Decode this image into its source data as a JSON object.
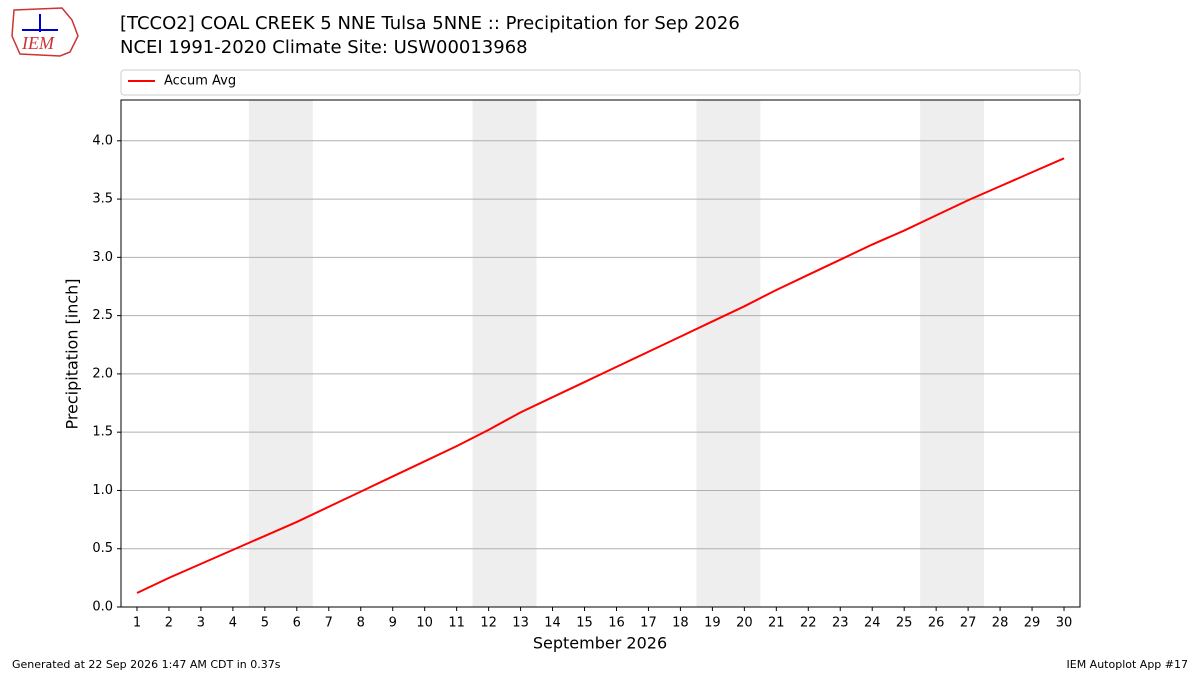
{
  "chart_data": {
    "type": "line",
    "title": "[TCCO2] COAL CREEK 5 NNE Tulsa 5NNE :: Precipitation for Sep 2026",
    "subtitle": "NCEI 1991-2020 Climate Site: USW00013968",
    "x_label": "September 2026",
    "y_label": "Precipitation [inch]",
    "logo_text": "IEM",
    "footer_left": "Generated at 22 Sep 2026 1:47 AM CDT in 0.37s",
    "footer_right": "IEM Autoplot App #17",
    "x": [
      1,
      2,
      3,
      4,
      5,
      6,
      7,
      8,
      9,
      10,
      11,
      12,
      13,
      14,
      15,
      16,
      17,
      18,
      19,
      20,
      21,
      22,
      23,
      24,
      25,
      26,
      27,
      28,
      29,
      30
    ],
    "series": [
      {
        "name": "Accum Avg",
        "color": "#ff0000",
        "values": [
          0.12,
          0.25,
          0.37,
          0.49,
          0.61,
          0.73,
          0.86,
          0.99,
          1.12,
          1.25,
          1.38,
          1.52,
          1.67,
          1.8,
          1.93,
          2.06,
          2.19,
          2.32,
          2.45,
          2.58,
          2.72,
          2.85,
          2.98,
          3.11,
          3.23,
          3.36,
          3.49,
          3.61,
          3.73,
          3.85
        ]
      }
    ],
    "shaded_spans": [
      [
        4.5,
        6.5
      ],
      [
        11.5,
        13.5
      ],
      [
        18.5,
        20.5
      ],
      [
        25.5,
        27.5
      ]
    ],
    "shade_color": "#eeeeee",
    "xlim": [
      0.5,
      30.5
    ],
    "ylim": [
      0,
      4.35
    ],
    "xticks": [
      1,
      2,
      3,
      4,
      5,
      6,
      7,
      8,
      9,
      10,
      11,
      12,
      13,
      14,
      15,
      16,
      17,
      18,
      19,
      20,
      21,
      22,
      23,
      24,
      25,
      26,
      27,
      28,
      29,
      30
    ],
    "yticks": [
      {
        "value": 0,
        "label": "0.0"
      },
      0.5,
      {
        "value": 1,
        "label": "1.0"
      },
      1.5,
      {
        "value": 2,
        "label": "2.0"
      },
      2.5,
      {
        "value": 3,
        "label": "3.0"
      },
      3.5,
      {
        "value": 4,
        "label": "4.0"
      }
    ],
    "grid": true,
    "legend": "top-left"
  }
}
